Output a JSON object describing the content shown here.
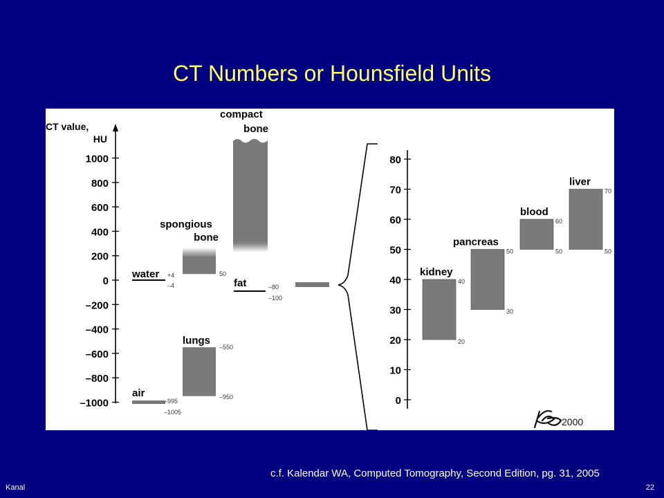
{
  "slide": {
    "title": "CT Numbers or Hounsfield Units",
    "citation": "c.f. Kalendar WA, Computed Tomography, Second Edition, pg. 31, 2005",
    "footer_left": "Kanal",
    "page_number": "22"
  },
  "figure": {
    "signature_text": "Ka",
    "signature_year": "2000"
  },
  "chart_data": [
    {
      "type": "range-bar",
      "axis_label_lines": [
        "CT   value,",
        "HU"
      ],
      "ticks": [
        -1000,
        -800,
        -600,
        -400,
        -200,
        0,
        200,
        400,
        600,
        800,
        1000
      ],
      "tick_labels": [
        "–1000",
        "–800",
        "–600",
        "–400",
        "–200",
        "0",
        "200",
        "400",
        "600",
        "800",
        "1000"
      ],
      "ylim": [
        -1010,
        1090
      ],
      "bars": [
        {
          "name": "air",
          "label_lines": [
            "air"
          ],
          "low": -1005,
          "high": -995,
          "low_label": "–1005",
          "high_label": "–995"
        },
        {
          "name": "lungs",
          "label_lines": [
            "lungs"
          ],
          "low": -950,
          "high": -550,
          "low_label": "–950",
          "high_label": "–550"
        },
        {
          "name": "water",
          "label_lines": [
            "water"
          ],
          "low": -4,
          "high": 4,
          "low_label": "–4",
          "high_label": "+4"
        },
        {
          "name": "fat",
          "label_lines": [
            "fat"
          ],
          "low": -100,
          "high": -80,
          "low_label": "–100",
          "high_label": "–80"
        },
        {
          "name": "spongious bone",
          "label_lines": [
            "spongious",
            "bone"
          ],
          "low": 50,
          "high": 200,
          "low_label": "50",
          "high_label": ""
        },
        {
          "name": "compact bone",
          "label_lines": [
            "compact",
            "bone"
          ],
          "low": 250,
          "high": 1150,
          "low_label": "",
          "high_label": ""
        }
      ],
      "zoom_range": [
        0,
        80
      ]
    },
    {
      "type": "range-bar",
      "ticks": [
        0,
        10,
        20,
        30,
        40,
        50,
        60,
        70,
        80
      ],
      "tick_labels": [
        "0",
        "10",
        "20",
        "30",
        "40",
        "50",
        "60",
        "70",
        "80"
      ],
      "ylim": [
        -3,
        83
      ],
      "bars": [
        {
          "name": "kidney",
          "label": "kidney",
          "low": 20,
          "high": 40,
          "low_label": "20",
          "high_label": "40"
        },
        {
          "name": "pancreas",
          "label": "pancreas",
          "low": 30,
          "high": 50,
          "low_label": "30",
          "high_label": "50"
        },
        {
          "name": "blood",
          "label": "blood",
          "low": 50,
          "high": 60,
          "low_label": "50",
          "high_label": "60"
        },
        {
          "name": "liver",
          "label": "liver",
          "low": 50,
          "high": 70,
          "low_label": "50",
          "high_label": "70"
        }
      ]
    }
  ]
}
